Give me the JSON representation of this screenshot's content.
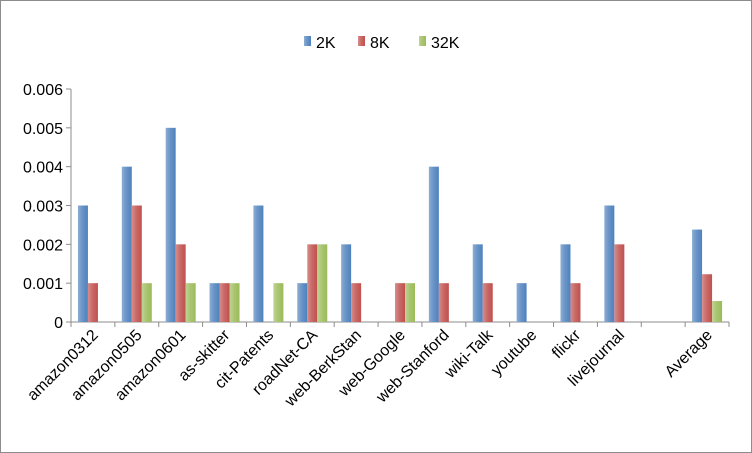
{
  "chart_data": {
    "type": "bar",
    "title": "",
    "xlabel": "",
    "ylabel": "",
    "ylim": [
      0,
      0.006
    ],
    "yticks": [
      "0",
      "0.001",
      "0.002",
      "0.003",
      "0.004",
      "0.005",
      "0.006"
    ],
    "grid": false,
    "legend_position": "top",
    "categories": [
      "amazon0312",
      "amazon0505",
      "amazon0601",
      "as-skitter",
      "cit-Patents",
      "roadNet-CA",
      "web-BerkStan",
      "web-Google",
      "web-Stanford",
      "wiki-Talk",
      "youtube",
      "flickr",
      "livejournal",
      "",
      "Average"
    ],
    "series": [
      {
        "name": "2K",
        "color": "#4f81bd",
        "values": [
          0.003,
          0.004,
          0.005,
          0.001,
          0.003,
          0.001,
          0.002,
          null,
          0.004,
          0.002,
          0.001,
          0.002,
          0.003,
          null,
          0.00238
        ]
      },
      {
        "name": "8K",
        "color": "#c0504d",
        "values": [
          0.001,
          0.003,
          0.002,
          0.001,
          null,
          0.002,
          0.001,
          0.001,
          0.001,
          0.001,
          null,
          0.001,
          0.002,
          null,
          0.00123
        ]
      },
      {
        "name": "32K",
        "color": "#9bbb59",
        "values": [
          null,
          0.001,
          0.001,
          0.001,
          0.001,
          0.002,
          null,
          0.001,
          null,
          null,
          null,
          null,
          null,
          null,
          0.00054
        ]
      }
    ]
  }
}
